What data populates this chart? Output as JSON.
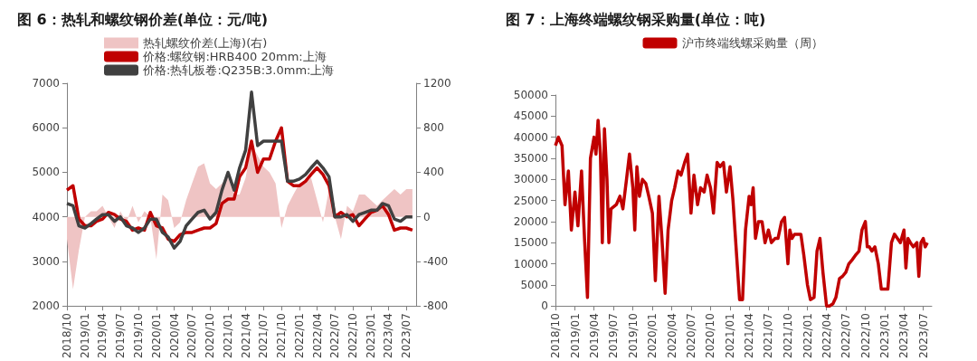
{
  "chart_data": [
    {
      "type": "line",
      "title": "图 6：热轧和螺纹钢价差(单位：元/吨)",
      "legend": "top",
      "grid": false,
      "xlim": [
        "2018-10-01",
        "2023-08-20"
      ],
      "xticks": [
        {
          "value": "2018-10",
          "label": "2018/10"
        },
        {
          "value": "2019-01",
          "label": "2019/01"
        },
        {
          "value": "2019-04",
          "label": "2019/04"
        },
        {
          "value": "2019-07",
          "label": "2019/07"
        },
        {
          "value": "2019-10",
          "label": "2019/10"
        },
        {
          "value": "2020-01",
          "label": "2020/01"
        },
        {
          "value": "2020-04",
          "label": "2020/04"
        },
        {
          "value": "2020-07",
          "label": "2020/07"
        },
        {
          "value": "2020-10",
          "label": "2020/10"
        },
        {
          "value": "2021-01",
          "label": "2021/01"
        },
        {
          "value": "2021-04",
          "label": "2021/04"
        },
        {
          "value": "2021-07",
          "label": "2021/07"
        },
        {
          "value": "2021-10",
          "label": "2021/10"
        },
        {
          "value": "2022-01",
          "label": "2022/01"
        },
        {
          "value": "2022-04",
          "label": "2022/04"
        },
        {
          "value": "2022-07",
          "label": "2022/07"
        },
        {
          "value": "2022-10",
          "label": "2022/10"
        },
        {
          "value": "2023-01",
          "label": "2023/01"
        },
        {
          "value": "2023-04",
          "label": "2023/04"
        },
        {
          "value": "2023-07",
          "label": "2023/07"
        }
      ],
      "ylim": [
        2000,
        7000
      ],
      "yticks": [
        2000,
        3000,
        4000,
        5000,
        6000,
        7000
      ],
      "y2lim": [
        -800,
        1200
      ],
      "y2ticks": [
        -800,
        -400,
        0,
        400,
        800,
        1200
      ],
      "x": [
        "2018-10",
        "2018-11",
        "2018-12",
        "2019-01",
        "2019-02",
        "2019-03",
        "2019-04",
        "2019-05",
        "2019-06",
        "2019-07",
        "2019-08",
        "2019-09",
        "2019-10",
        "2019-11",
        "2019-12",
        "2020-01",
        "2020-02",
        "2020-03",
        "2020-04",
        "2020-05",
        "2020-06",
        "2020-07",
        "2020-08",
        "2020-09",
        "2020-10",
        "2020-11",
        "2020-12",
        "2021-01",
        "2021-02",
        "2021-03",
        "2021-04",
        "2021-05",
        "2021-06",
        "2021-07",
        "2021-08",
        "2021-09",
        "2021-10",
        "2021-11",
        "2021-12",
        "2022-01",
        "2022-02",
        "2022-03",
        "2022-04",
        "2022-05",
        "2022-06",
        "2022-07",
        "2022-08",
        "2022-09",
        "2022-10",
        "2022-11",
        "2022-12",
        "2023-01",
        "2023-02",
        "2023-03",
        "2023-04",
        "2023-05",
        "2023-06",
        "2023-07",
        "2023-08"
      ],
      "series": [
        {
          "name": "热轧螺纹价差(上海)(右)",
          "type": "area",
          "axis": "y2",
          "color": "#efc4c4",
          "values": [
            -200,
            -650,
            -300,
            0,
            50,
            50,
            100,
            0,
            -100,
            50,
            -50,
            100,
            -50,
            50,
            0,
            -380,
            200,
            150,
            -100,
            -50,
            150,
            300,
            450,
            480,
            300,
            250,
            300,
            350,
            200,
            200,
            350,
            650,
            550,
            450,
            400,
            300,
            -100,
            100,
            200,
            300,
            300,
            350,
            150,
            -50,
            250,
            0,
            -200,
            100,
            50,
            200,
            200,
            150,
            100,
            150,
            200,
            250,
            200,
            250,
            250
          ]
        },
        {
          "name": "价格:螺纹钢:HRB400 20mm:上海",
          "color": "#c00000",
          "values": [
            4600,
            4700,
            3950,
            3800,
            3800,
            3900,
            3950,
            4100,
            4050,
            3950,
            3900,
            3700,
            3750,
            3700,
            4100,
            3800,
            3750,
            3500,
            3450,
            3600,
            3650,
            3650,
            3700,
            3750,
            3750,
            3850,
            4300,
            4400,
            4400,
            4900,
            5100,
            5700,
            5000,
            5300,
            5300,
            5700,
            6000,
            4800,
            4700,
            4700,
            4800,
            4950,
            5100,
            4950,
            4700,
            4000,
            4100,
            4000,
            4050,
            3800,
            3950,
            4100,
            4150,
            4250,
            4050,
            3700,
            3750,
            3750,
            3700
          ]
        },
        {
          "name": "价格:热轧板卷:Q235B:3.0mm:上海",
          "color": "#404040",
          "values": [
            4300,
            4250,
            3800,
            3750,
            3850,
            3950,
            4050,
            4050,
            3900,
            4000,
            3800,
            3750,
            3650,
            3750,
            3950,
            3950,
            3650,
            3550,
            3300,
            3450,
            3800,
            3950,
            4100,
            4150,
            3950,
            4100,
            4600,
            5000,
            4600,
            5100,
            5500,
            6800,
            5600,
            5700,
            5700,
            5700,
            5700,
            4800,
            4800,
            4850,
            4950,
            5100,
            5250,
            5100,
            4900,
            4000,
            4000,
            4050,
            3900,
            4050,
            4100,
            4150,
            4150,
            4300,
            4250,
            3950,
            3900,
            4000,
            4000
          ]
        }
      ]
    },
    {
      "type": "line",
      "title": "图 7：上海终端螺纹钢采购量(单位：吨)",
      "legend": "top",
      "grid": false,
      "xlim": [
        "2018-10-01",
        "2023-08-10"
      ],
      "xticks": [
        {
          "value": "2018-10",
          "label": "2018/10"
        },
        {
          "value": "2019-01",
          "label": "2019/01"
        },
        {
          "value": "2019-04",
          "label": "2019/04"
        },
        {
          "value": "2019-07",
          "label": "2019/07"
        },
        {
          "value": "2019-10",
          "label": "2019/10"
        },
        {
          "value": "2020-01",
          "label": "2020/01"
        },
        {
          "value": "2020-04",
          "label": "2020/04"
        },
        {
          "value": "2020-07",
          "label": "2020/07"
        },
        {
          "value": "2020-10",
          "label": "2020/10"
        },
        {
          "value": "2021-01",
          "label": "2021/01"
        },
        {
          "value": "2021-04",
          "label": "2021/04"
        },
        {
          "value": "2021-07",
          "label": "2021/07"
        },
        {
          "value": "2021-10",
          "label": "2021/10"
        },
        {
          "value": "2022-01",
          "label": "2022/01"
        },
        {
          "value": "2022-04",
          "label": "2022/04"
        },
        {
          "value": "2022-07",
          "label": "2022/07"
        },
        {
          "value": "2022-10",
          "label": "2022/10"
        },
        {
          "value": "2023-01",
          "label": "2023/01"
        },
        {
          "value": "2023-04",
          "label": "2023/04"
        },
        {
          "value": "2023-07",
          "label": "2023/07"
        }
      ],
      "ylim": [
        0,
        50000
      ],
      "yticks": [
        0,
        5000,
        10000,
        15000,
        20000,
        25000,
        30000,
        35000,
        40000,
        45000,
        50000
      ],
      "x": [
        "2018-10-01",
        "2018-10-15",
        "2018-11-01",
        "2018-11-15",
        "2018-12-01",
        "2018-12-15",
        "2019-01-01",
        "2019-01-15",
        "2019-02-01",
        "2019-02-15",
        "2019-03-01",
        "2019-03-15",
        "2019-04-01",
        "2019-04-10",
        "2019-04-20",
        "2019-05-01",
        "2019-05-10",
        "2019-05-20",
        "2019-06-01",
        "2019-06-10",
        "2019-06-20",
        "2019-07-15",
        "2019-08-01",
        "2019-08-15",
        "2019-09-01",
        "2019-09-15",
        "2019-10-01",
        "2019-10-10",
        "2019-10-20",
        "2019-11-01",
        "2019-11-15",
        "2019-12-01",
        "2019-12-15",
        "2020-01-01",
        "2020-01-15",
        "2020-02-01",
        "2020-02-15",
        "2020-03-01",
        "2020-03-15",
        "2020-04-01",
        "2020-04-15",
        "2020-05-01",
        "2020-05-15",
        "2020-06-01",
        "2020-06-15",
        "2020-07-01",
        "2020-07-15",
        "2020-08-01",
        "2020-08-15",
        "2020-09-01",
        "2020-09-15",
        "2020-10-01",
        "2020-10-15",
        "2020-11-01",
        "2020-11-15",
        "2020-12-01",
        "2020-12-15",
        "2021-01-01",
        "2021-01-15",
        "2021-02-01",
        "2021-02-15",
        "2021-03-01",
        "2021-03-15",
        "2021-04-01",
        "2021-04-10",
        "2021-04-20",
        "2021-05-01",
        "2021-05-15",
        "2021-06-01",
        "2021-06-15",
        "2021-07-01",
        "2021-07-15",
        "2021-08-01",
        "2021-08-15",
        "2021-09-01",
        "2021-09-15",
        "2021-10-01",
        "2021-10-10",
        "2021-10-20",
        "2021-11-01",
        "2021-11-15",
        "2021-12-01",
        "2021-12-15",
        "2022-01-01",
        "2022-01-15",
        "2022-02-01",
        "2022-02-15",
        "2022-03-01",
        "2022-03-15",
        "2022-04-01",
        "2022-04-15",
        "2022-05-01",
        "2022-05-15",
        "2022-06-01",
        "2022-06-15",
        "2022-07-01",
        "2022-07-15",
        "2022-08-01",
        "2022-08-15",
        "2022-09-01",
        "2022-09-15",
        "2022-10-01",
        "2022-10-10",
        "2022-10-20",
        "2022-11-01",
        "2022-11-15",
        "2022-12-01",
        "2022-12-15",
        "2023-01-01",
        "2023-01-15",
        "2023-02-01",
        "2023-02-15",
        "2023-03-01",
        "2023-03-15",
        "2023-04-01",
        "2023-04-10",
        "2023-04-20",
        "2023-05-01",
        "2023-05-15",
        "2023-06-01",
        "2023-06-10",
        "2023-06-20",
        "2023-07-01",
        "2023-07-10",
        "2023-07-20"
      ],
      "series": [
        {
          "name": "沪市终端线螺采购量（周）",
          "color": "#c00000",
          "values": [
            38000,
            40000,
            38000,
            24000,
            32000,
            18000,
            27000,
            19000,
            32000,
            16000,
            2000,
            35000,
            40000,
            36000,
            44000,
            36000,
            15000,
            42000,
            30000,
            15000,
            23000,
            24000,
            26000,
            23000,
            30000,
            36000,
            28000,
            18000,
            33000,
            26000,
            30000,
            29000,
            26000,
            22000,
            6000,
            26000,
            16000,
            3000,
            18000,
            25000,
            28000,
            32000,
            31000,
            34000,
            36000,
            22000,
            31000,
            24000,
            28000,
            27000,
            31000,
            28000,
            22000,
            34000,
            33000,
            34000,
            27000,
            33000,
            25000,
            12000,
            1500,
            1500,
            18000,
            26000,
            24000,
            28000,
            16000,
            20000,
            20000,
            15000,
            18000,
            15000,
            16000,
            16000,
            20000,
            21000,
            10000,
            18000,
            16000,
            17000,
            17000,
            17000,
            12000,
            5000,
            1500,
            2000,
            13000,
            16000,
            8000,
            0,
            0,
            500,
            2000,
            6500,
            7000,
            8000,
            10000,
            11000,
            12000,
            13000,
            18000,
            20000,
            14000,
            14000,
            13000,
            14000,
            10000,
            4000,
            4000,
            4000,
            15000,
            17000,
            16000,
            15000,
            18000,
            9000,
            16000,
            15000,
            14000,
            15000,
            7000,
            15000,
            16000,
            14000,
            15000
          ]
        }
      ]
    }
  ]
}
